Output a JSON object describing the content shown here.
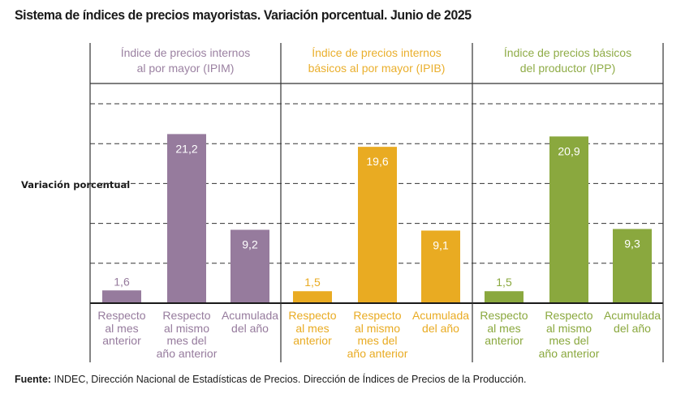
{
  "title": "Sistema de índices de precios mayoristas. Variación porcentual. Junio de 2025",
  "footer": {
    "label": "Fuente:",
    "text": " INDEC, Dirección Nacional de Estadísticas de Precios. Dirección de Índices de Precios de la Producción."
  },
  "chart_data": {
    "type": "bar",
    "title": "Sistema de índices de precios mayoristas. Variación porcentual. Junio de 2025",
    "xlabel": "",
    "ylabel": "Variación porcentual",
    "ylim": [
      0,
      25
    ],
    "grid": true,
    "grid_values": [
      5,
      10,
      15,
      20,
      25
    ],
    "legend": "none",
    "categories": [
      [
        "Respecto",
        "al mes",
        "anterior"
      ],
      [
        "Respecto",
        "al mismo",
        "mes del",
        "año anterior"
      ],
      [
        "Acumulada",
        "del año"
      ]
    ],
    "series": [
      {
        "name": "Índice de precios internos al por mayor (IPIM)",
        "title_lines": [
          "Índice de precios internos",
          "al por mayor (IPIM)"
        ],
        "color": "#967b9d",
        "values": [
          1.6,
          21.2,
          9.2
        ],
        "labels": [
          "1,6",
          "21,2",
          "9,2"
        ]
      },
      {
        "name": "Índice de precios internos básicos al por mayor (IPIB)",
        "title_lines": [
          "Índice de precios internos",
          "básicos al por mayor (IPIB)"
        ],
        "color": "#e9ab22",
        "values": [
          1.5,
          19.6,
          9.1
        ],
        "labels": [
          "1,5",
          "19,6",
          "9,1"
        ]
      },
      {
        "name": "Índice de precios básicos del productor (IPP)",
        "title_lines": [
          "Índice de precios básicos",
          "del productor (IPP)"
        ],
        "color": "#8aa83e",
        "values": [
          1.5,
          20.9,
          9.3
        ],
        "labels": [
          "1,5",
          "20,9",
          "9,3"
        ]
      }
    ]
  }
}
